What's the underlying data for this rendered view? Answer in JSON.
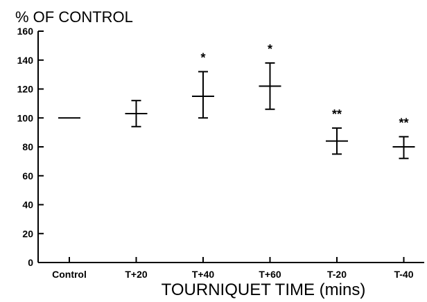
{
  "chart_data": {
    "type": "scatter",
    "title": "",
    "ylabel": "% OF CONTROL",
    "xlabel": "TOURNIQUET TIME (mins)",
    "categories": [
      "Control",
      "T+20",
      "T+40",
      "T+60",
      "T-20",
      "T-40"
    ],
    "series": [
      {
        "values": [
          100,
          103,
          115,
          122,
          84,
          80
        ],
        "error_low": [
          100,
          94,
          100,
          106,
          75,
          72
        ],
        "error_high": [
          100,
          112,
          132,
          138,
          93,
          87
        ]
      }
    ],
    "significance": [
      "",
      "",
      "*",
      "*",
      "**",
      "**"
    ],
    "ylim": [
      0,
      160
    ],
    "yticks": [
      0,
      20,
      40,
      60,
      80,
      100,
      120,
      140,
      160
    ],
    "grid": false,
    "legend": "none"
  }
}
